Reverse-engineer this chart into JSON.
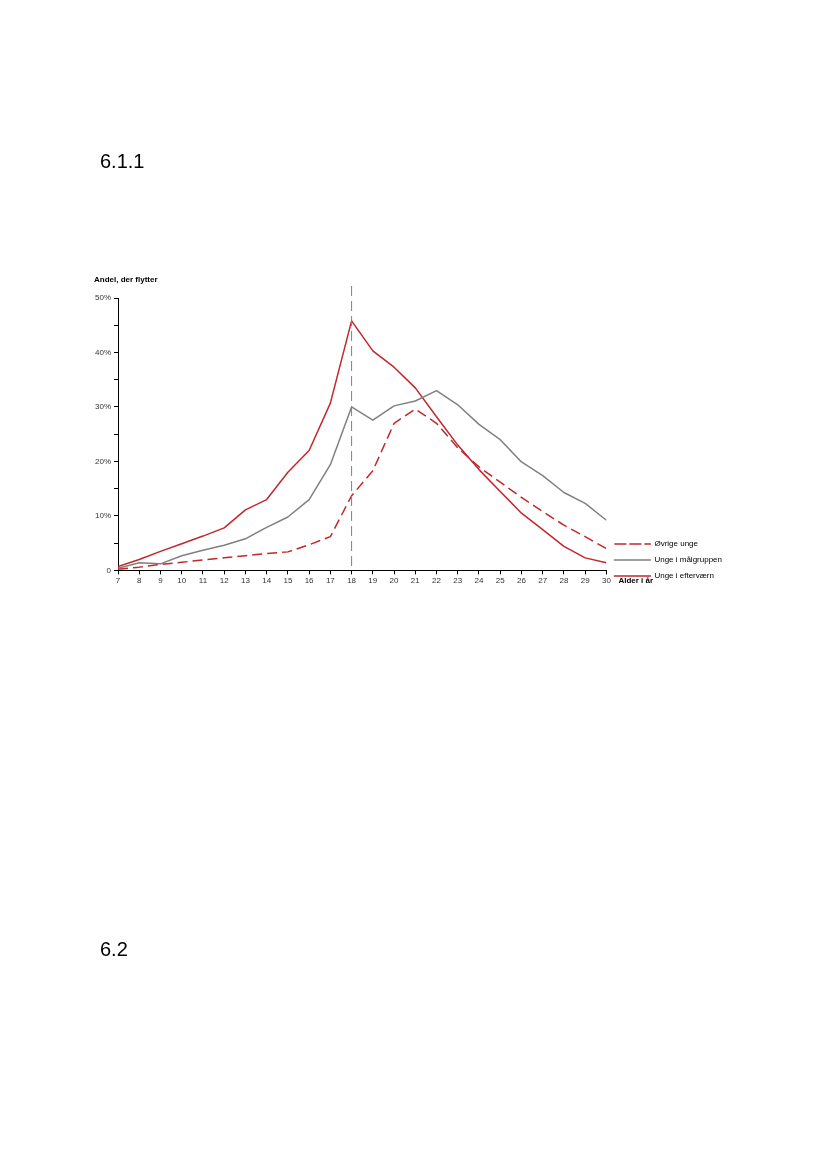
{
  "chart_data": {
    "type": "line",
    "ylabel": "Andel, der flytter",
    "xlabel": "Alder i år",
    "annotations": [
      "6.1.1",
      "6.2"
    ],
    "x": [
      7,
      8,
      9,
      10,
      11,
      12,
      13,
      14,
      15,
      16,
      17,
      18,
      19,
      20,
      21,
      22,
      23,
      24,
      25,
      26,
      27,
      28,
      29,
      30
    ],
    "xlim": [
      7,
      30
    ],
    "xticks": [
      7,
      8,
      9,
      10,
      11,
      12,
      13,
      14,
      15,
      16,
      17,
      18,
      19,
      20,
      21,
      22,
      23,
      24,
      25,
      26,
      27,
      28,
      29,
      30
    ],
    "ylim": [
      0,
      50
    ],
    "yticks": [
      {
        "value": 0,
        "label": "0"
      },
      {
        "value": 5,
        "label": null
      },
      {
        "value": 10,
        "label": "10%"
      },
      {
        "value": 15,
        "label": null
      },
      {
        "value": 20,
        "label": "20%"
      },
      {
        "value": 25,
        "label": null
      },
      {
        "value": 30,
        "label": "30%"
      },
      {
        "value": 35,
        "label": null
      },
      {
        "value": 40,
        "label": "40%"
      },
      {
        "value": 45,
        "label": null
      },
      {
        "value": 50,
        "label": "50%"
      }
    ],
    "grid": false,
    "legend": "right",
    "marker": "none",
    "ref_lines": [
      {
        "axis": "x",
        "value": 18,
        "color": "#808080",
        "line_style": "dashed"
      }
    ],
    "series": [
      {
        "name": "Øvrige unge",
        "color": "#c0282d",
        "line_style": "dashed",
        "values": [
          0.2,
          0.6,
          1.1,
          1.5,
          1.9,
          2.3,
          2.7,
          3.1,
          3.4,
          4.7,
          6.2,
          13.7,
          18.3,
          27,
          29.6,
          27,
          22.5,
          19,
          16.2,
          13.4,
          10.8,
          8.3,
          6.2,
          4
        ]
      },
      {
        "name": "Unge i målgruppen",
        "color": "#808080",
        "line_style": "solid",
        "values": [
          0.4,
          1.4,
          1.2,
          2.7,
          3.7,
          4.6,
          5.8,
          7.9,
          9.8,
          13,
          19.4,
          30,
          27.6,
          30.2,
          31.1,
          33,
          30.4,
          26.8,
          24,
          19.9,
          17.4,
          14.3,
          12.3,
          9.2
        ]
      },
      {
        "name": "Unge i efterværn",
        "color": "#c0282d",
        "line_style": "solid",
        "values": [
          0.7,
          2,
          3.5,
          4.9,
          6.3,
          7.8,
          11.1,
          13,
          18,
          22,
          30.7,
          45.8,
          40.3,
          37.3,
          33.5,
          28.2,
          23,
          18.5,
          14.5,
          10.5,
          7.5,
          4.4,
          2.3,
          1.4
        ]
      }
    ]
  }
}
